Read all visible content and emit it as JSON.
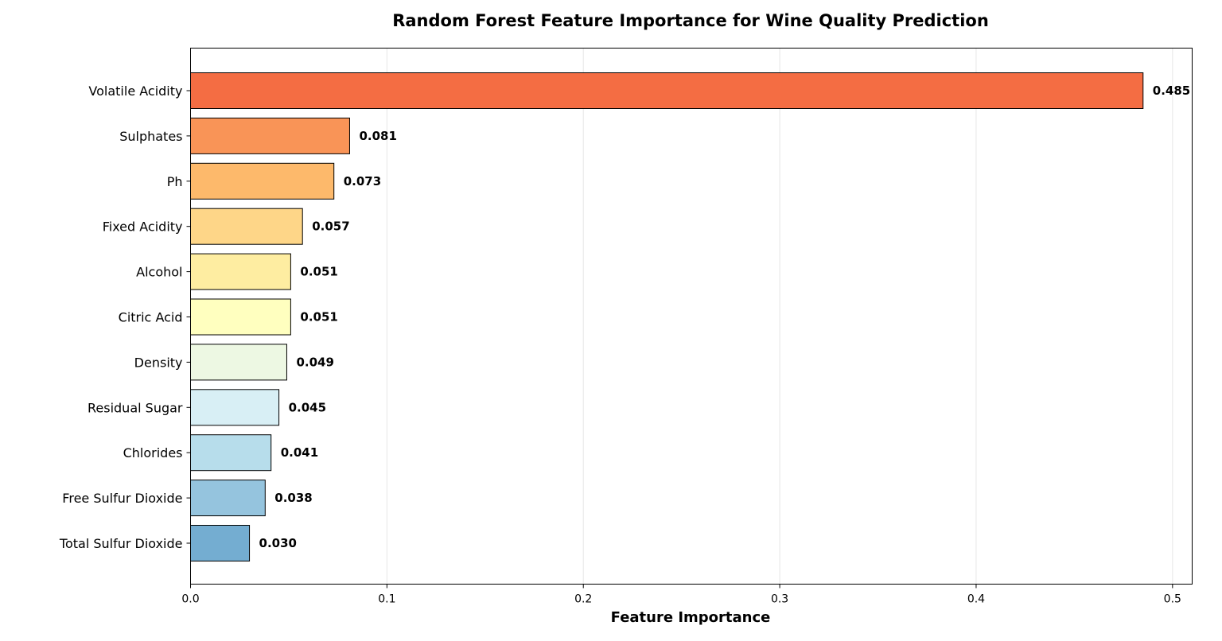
{
  "chart_data": {
    "type": "bar",
    "orientation": "horizontal",
    "title": "Random Forest Feature Importance for Wine Quality Prediction",
    "xlabel": "Feature Importance",
    "ylabel": "",
    "xlim": [
      0,
      0.51
    ],
    "xticks": [
      0.0,
      0.1,
      0.2,
      0.3,
      0.4,
      0.5
    ],
    "xtick_labels": [
      "0.0",
      "0.1",
      "0.2",
      "0.3",
      "0.4",
      "0.5"
    ],
    "grid": "x",
    "categories": [
      "Volatile Acidity",
      "Sulphates",
      "Ph",
      "Fixed Acidity",
      "Alcohol",
      "Citric Acid",
      "Density",
      "Residual Sugar",
      "Chlorides",
      "Free Sulfur Dioxide",
      "Total Sulfur Dioxide"
    ],
    "values": [
      0.485,
      0.081,
      0.073,
      0.057,
      0.051,
      0.051,
      0.049,
      0.045,
      0.041,
      0.038,
      0.03
    ],
    "value_labels": [
      "0.485",
      "0.081",
      "0.073",
      "0.057",
      "0.051",
      "0.051",
      "0.049",
      "0.045",
      "0.041",
      "0.038",
      "0.030"
    ],
    "colors": [
      "#f46d43",
      "#f99457",
      "#fdb96b",
      "#fed688",
      "#feeda1",
      "#ffffbf",
      "#edf8e3",
      "#d8eff5",
      "#b7ddeb",
      "#95c4de",
      "#74add1"
    ]
  }
}
